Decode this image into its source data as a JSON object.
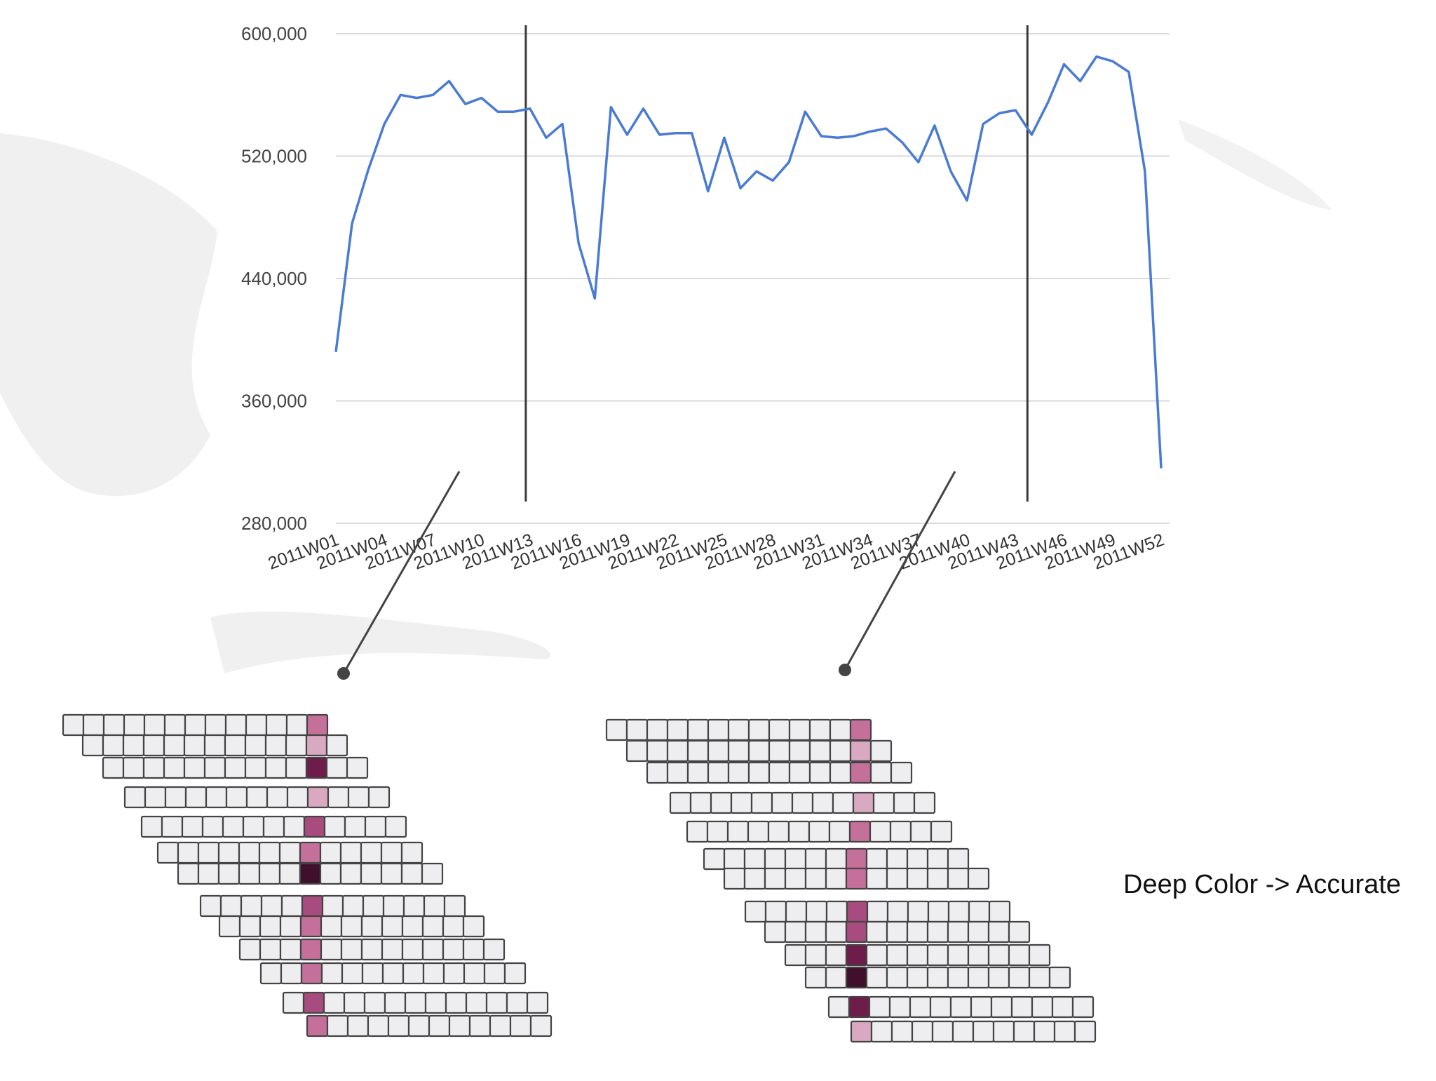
{
  "chart_data": {
    "type": "line",
    "title": "",
    "xlabel": "",
    "ylabel": "",
    "ylim": [
      280000,
      600000
    ],
    "y_ticks": [
      "600,000",
      "520,000",
      "440,000",
      "360,000",
      "280,000"
    ],
    "y_tick_values": [
      600000,
      520000,
      440000,
      360000,
      280000
    ],
    "x_tick_labels": [
      "2011W01",
      "2011W04",
      "2011W07",
      "2011W10",
      "2011W13",
      "2011W16",
      "2011W19",
      "2011W22",
      "2011W25",
      "2011W28",
      "2011W31",
      "2011W34",
      "2011W37",
      "2011W40",
      "2011W43",
      "2011W46",
      "2011W49",
      "2011W52"
    ],
    "x": [
      "2011W01",
      "2011W02",
      "2011W03",
      "2011W04",
      "2011W05",
      "2011W06",
      "2011W07",
      "2011W08",
      "2011W09",
      "2011W10",
      "2011W11",
      "2011W12",
      "2011W13",
      "2011W14",
      "2011W15",
      "2011W16",
      "2011W17",
      "2011W18",
      "2011W19",
      "2011W20",
      "2011W21",
      "2011W22",
      "2011W23",
      "2011W24",
      "2011W25",
      "2011W26",
      "2011W27",
      "2011W28",
      "2011W29",
      "2011W30",
      "2011W31",
      "2011W32",
      "2011W33",
      "2011W34",
      "2011W35",
      "2011W36",
      "2011W37",
      "2011W38",
      "2011W39",
      "2011W40",
      "2011W41",
      "2011W42",
      "2011W43",
      "2011W44",
      "2011W45",
      "2011W46",
      "2011W47",
      "2011W48",
      "2011W49",
      "2011W50",
      "2011W51",
      "2011W52"
    ],
    "series": [
      {
        "color": "#4a7bd4",
        "values": [
          392000,
          476000,
          511000,
          541000,
          560000,
          558000,
          560000,
          569000,
          554000,
          558000,
          549000,
          549000,
          551000,
          532000,
          541000,
          463000,
          427000,
          552000,
          534000,
          551000,
          534000,
          535000,
          535000,
          497000,
          532000,
          499000,
          510000,
          504000,
          516000,
          549000,
          533000,
          532000,
          533000,
          536000,
          538000,
          529000,
          516000,
          540000,
          510000,
          491000,
          541000,
          548000,
          550000,
          534000,
          555000,
          580000,
          569000,
          585000,
          582000,
          575000,
          510000,
          316000
        ]
      }
    ],
    "markers": [
      {
        "at": "2011W12"
      },
      {
        "at": "2011W43"
      }
    ],
    "grid": true,
    "legend": "none"
  },
  "heatmaps": {
    "colors": {
      "empty": "#eeeef0",
      "border": "#444444",
      "light": "#d9a9c2",
      "medium": "#c56f9b",
      "strong": "#a84b7e",
      "deep": "#6e1c4a",
      "deepest": "#3f0f2c"
    },
    "left": {
      "highlight_levels": [
        "medium",
        "light",
        "deep",
        "light",
        "strong",
        "medium",
        "deepest",
        "strong",
        "medium",
        "medium",
        "medium",
        "strong",
        "medium"
      ]
    },
    "right": {
      "highlight_levels": [
        "medium",
        "light",
        "medium",
        "light",
        "medium",
        "medium",
        "medium",
        "strong",
        "strong",
        "deep",
        "deepest",
        "deep",
        "light"
      ]
    }
  },
  "caption": "Deep Color -> Accurate"
}
